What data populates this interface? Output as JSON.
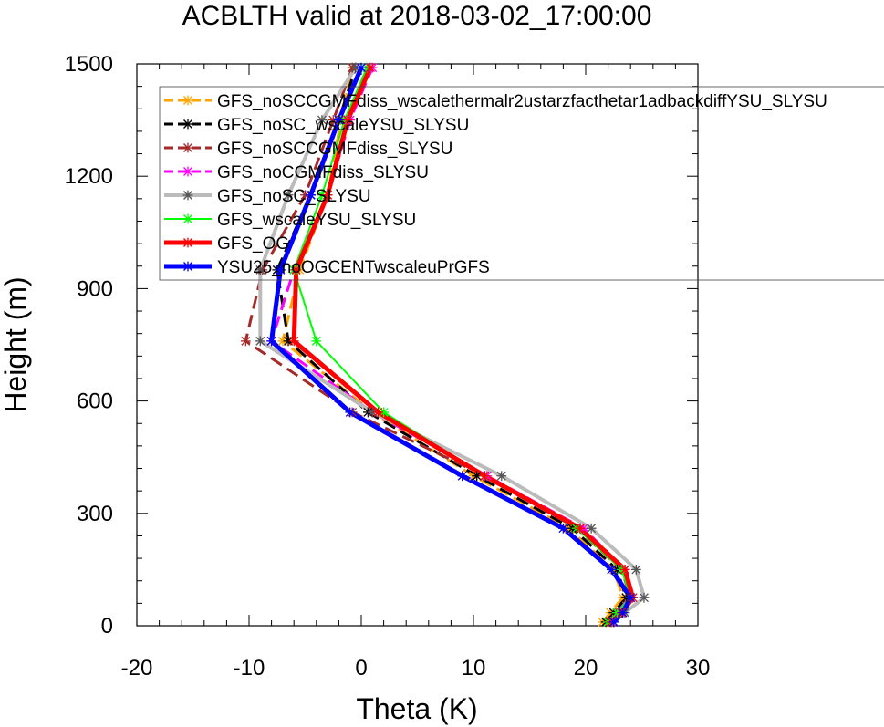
{
  "chart_data": {
    "type": "line",
    "title": "ACBLTH valid at 2018-03-02_17:00:00",
    "xlabel": "Theta (K)",
    "ylabel": "Height (m)",
    "xlim": [
      -20,
      30
    ],
    "ylim": [
      0,
      1500
    ],
    "xticks": [
      "-20",
      "-10",
      "0",
      "10",
      "20",
      "30"
    ],
    "yticks": [
      "0",
      "300",
      "600",
      "900",
      "1200",
      "1500"
    ],
    "legend_position": "top-right",
    "grid": false,
    "series": [
      {
        "name": "GFS_noSCCGMFdiss_wscalethermalr2ustarzfacthetar1adbackdiffYSU_SLYSU",
        "color": "#ffa500",
        "dash": "dash",
        "width": 3,
        "x": [
          21.5,
          22.2,
          23.3,
          22.5,
          18.5,
          10.0,
          1.0,
          -7.0,
          -5.5,
          -3.0,
          -1.8,
          -0.8
        ],
        "y": [
          10,
          35,
          75,
          150,
          260,
          400,
          570,
          760,
          950,
          1150,
          1350,
          1490
        ]
      },
      {
        "name": "GFS_noSC_wscaleYSU_SLYSU",
        "color": "#000000",
        "dash": "dash",
        "width": 3,
        "x": [
          21.8,
          22.5,
          23.6,
          22.8,
          18.8,
          10.3,
          0.6,
          -6.5,
          -7.5,
          -4.5,
          -2.0,
          -0.5
        ],
        "y": [
          10,
          35,
          75,
          150,
          260,
          400,
          570,
          760,
          950,
          1150,
          1350,
          1490
        ]
      },
      {
        "name": "GFS_noSCCGMFdiss_SLYSU",
        "color": "#a52a2a",
        "dash": "dash",
        "width": 3,
        "x": [
          22.2,
          23.0,
          24.0,
          23.2,
          19.2,
          11.0,
          -0.8,
          -10.3,
          -8.8,
          -5.0,
          -2.5,
          -0.8
        ],
        "y": [
          10,
          35,
          75,
          150,
          260,
          400,
          570,
          760,
          950,
          1150,
          1350,
          1490
        ]
      },
      {
        "name": "GFS_noCGMFdiss_SLYSU",
        "color": "#ff00ff",
        "dash": "dash",
        "width": 3,
        "x": [
          22.0,
          22.8,
          24.0,
          23.5,
          19.8,
          11.2,
          1.0,
          -8.0,
          -6.0,
          -3.0,
          -1.0,
          1.0
        ],
        "y": [
          10,
          35,
          75,
          150,
          260,
          400,
          570,
          760,
          950,
          1150,
          1350,
          1490
        ]
      },
      {
        "name": "GFS_noSC_SLYSU",
        "color": "#bbbbbb",
        "dash": "solid",
        "width": 4,
        "x": [
          22.5,
          23.5,
          25.2,
          24.5,
          20.5,
          12.5,
          1.0,
          -9.0,
          -9.0,
          -6.5,
          -3.5,
          -0.5
        ],
        "y": [
          10,
          35,
          75,
          150,
          260,
          400,
          570,
          760,
          950,
          1150,
          1350,
          1490
        ]
      },
      {
        "name": "GFS_wscaleYSU_SLYSU",
        "color": "#00ff00",
        "dash": "solid",
        "width": 2,
        "x": [
          22.0,
          22.8,
          24.0,
          23.2,
          19.2,
          11.0,
          2.0,
          -4.0,
          -6.0,
          -3.5,
          -1.5,
          0.5
        ],
        "y": [
          10,
          35,
          75,
          150,
          260,
          400,
          570,
          760,
          950,
          1150,
          1350,
          1490
        ]
      },
      {
        "name": "GFS_OG",
        "color": "#ff0000",
        "dash": "solid",
        "width": 5,
        "x": [
          22.3,
          23.2,
          24.2,
          23.5,
          19.5,
          11.0,
          1.5,
          -6.0,
          -5.8,
          -3.0,
          -1.2,
          0.8
        ],
        "y": [
          10,
          35,
          75,
          150,
          260,
          400,
          570,
          760,
          950,
          1150,
          1350,
          1490
        ]
      },
      {
        "name": "YSU25_noOGCENTwscaleuPrGFS",
        "color": "#0000ff",
        "dash": "solid",
        "width": 5,
        "x": [
          22.5,
          23.3,
          24.0,
          22.3,
          18.0,
          9.0,
          -1.0,
          -8.0,
          -7.2,
          -4.5,
          -2.0,
          0.0
        ],
        "y": [
          10,
          35,
          75,
          150,
          260,
          400,
          570,
          760,
          950,
          1150,
          1350,
          1490
        ]
      }
    ]
  }
}
